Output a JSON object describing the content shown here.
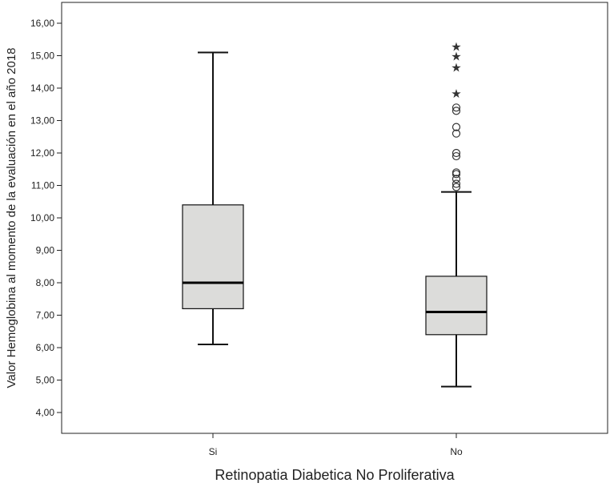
{
  "chart_data": {
    "type": "boxplot",
    "xlabel": "Retinopatia Diabetica No Proliferativa",
    "ylabel": "Valor Hemoglobina al momento de la evaluación en el año 2018",
    "ylim": [
      3.65,
      16.45
    ],
    "yticks": [
      "4,00",
      "5,00",
      "6,00",
      "7,00",
      "8,00",
      "9,00",
      "10,00",
      "11,00",
      "12,00",
      "13,00",
      "14,00",
      "15,00",
      "16,00"
    ],
    "categories": [
      "Si",
      "No"
    ],
    "grid": false,
    "box_fill": "#dcdcda",
    "boxes": [
      {
        "category": "Si",
        "whisker_low": 6.1,
        "q1": 7.2,
        "median": 8.0,
        "q3": 10.4,
        "whisker_high": 15.1,
        "outliers": [],
        "extremes": []
      },
      {
        "category": "No",
        "whisker_low": 4.8,
        "q1": 6.4,
        "median": 7.1,
        "q3": 8.2,
        "whisker_high": 10.8,
        "outliers": [
          10.95,
          11.05,
          11.2,
          11.35,
          11.4,
          11.9,
          12.0,
          12.6,
          12.8,
          13.3,
          13.4
        ],
        "extremes": [
          13.85,
          14.65,
          15.0,
          15.3
        ]
      }
    ]
  }
}
